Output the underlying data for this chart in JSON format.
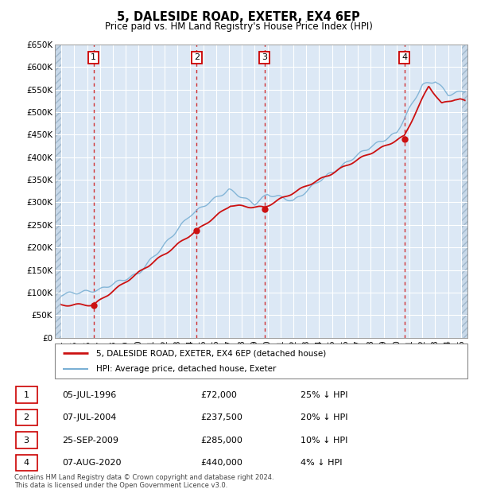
{
  "title": "5, DALESIDE ROAD, EXETER, EX4 6EP",
  "subtitle": "Price paid vs. HM Land Registry's House Price Index (HPI)",
  "ylabel_ticks": [
    0,
    50000,
    100000,
    150000,
    200000,
    250000,
    300000,
    350000,
    400000,
    450000,
    500000,
    550000,
    600000,
    650000
  ],
  "xmin": 1993.5,
  "xmax": 2025.5,
  "ymin": 0,
  "ymax": 650000,
  "background_color": "#dce8f5",
  "grid_color": "#ffffff",
  "sale_events": [
    {
      "year": 1996.5,
      "price": 72000,
      "label": "1",
      "date": "05-JUL-1996",
      "price_str": "£72,000",
      "pct": "25% ↓ HPI"
    },
    {
      "year": 2004.5,
      "price": 237500,
      "label": "2",
      "date": "07-JUL-2004",
      "price_str": "£237,500",
      "pct": "20% ↓ HPI"
    },
    {
      "year": 2009.75,
      "price": 285000,
      "label": "3",
      "date": "25-SEP-2009",
      "price_str": "£285,000",
      "pct": "10% ↓ HPI"
    },
    {
      "year": 2020.6,
      "price": 440000,
      "label": "4",
      "date": "07-AUG-2020",
      "price_str": "£440,000",
      "pct": "4% ↓ HPI"
    }
  ],
  "hpi_line_color": "#7ab0d4",
  "sale_line_color": "#cc1111",
  "sale_dot_color": "#cc1111",
  "vline_color": "#cc1111",
  "legend_entries": [
    "5, DALESIDE ROAD, EXETER, EX4 6EP (detached house)",
    "HPI: Average price, detached house, Exeter"
  ],
  "footer": "Contains HM Land Registry data © Crown copyright and database right 2024.\nThis data is licensed under the Open Government Licence v3.0."
}
